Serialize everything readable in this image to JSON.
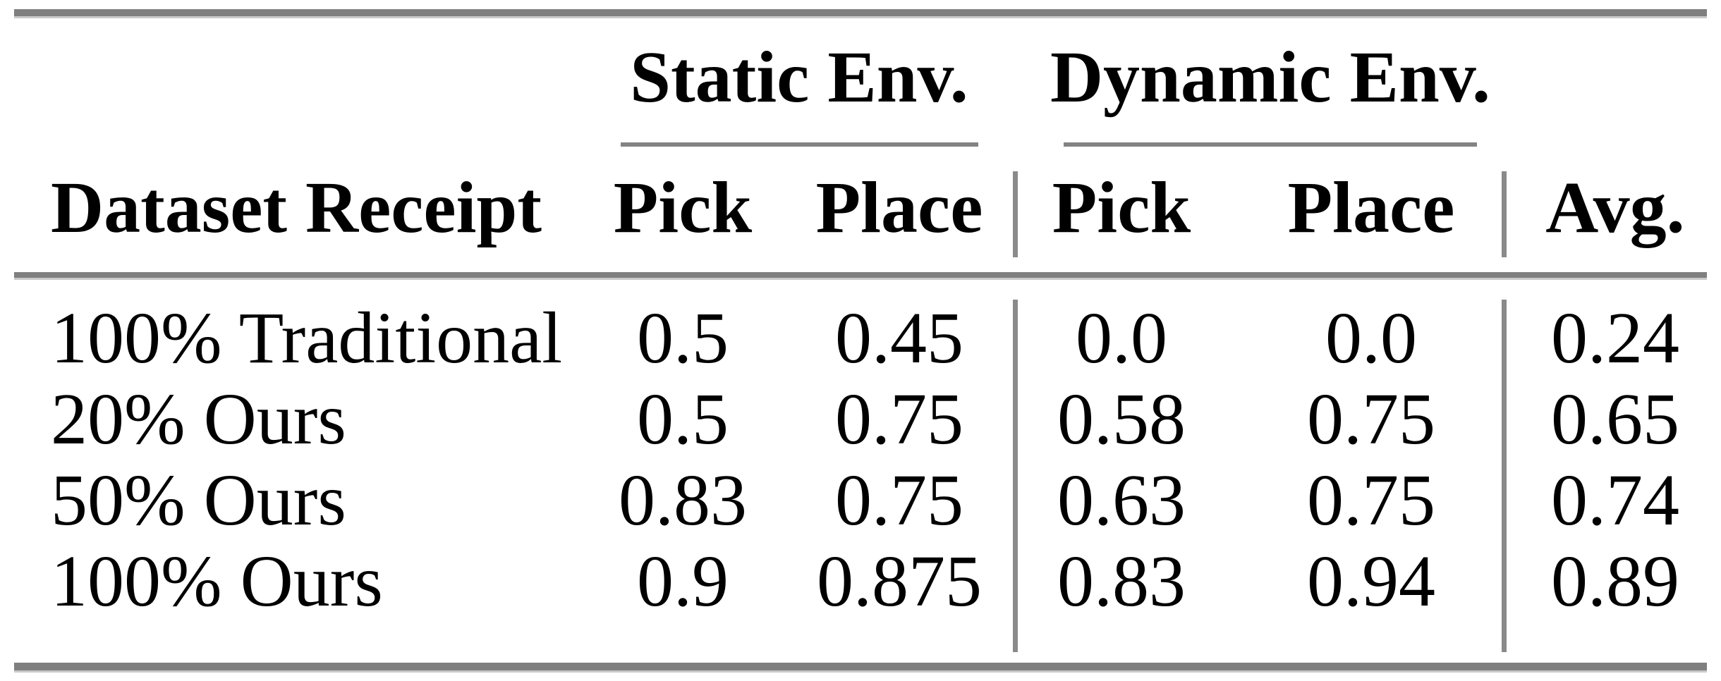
{
  "table": {
    "column_groups": [
      {
        "label": "Static Env."
      },
      {
        "label": "Dynamic Env."
      }
    ],
    "columns": [
      {
        "label": "Dataset Receipt"
      },
      {
        "label": "Pick"
      },
      {
        "label": "Place"
      },
      {
        "label": "Pick"
      },
      {
        "label": "Place"
      },
      {
        "label": "Avg."
      }
    ],
    "rows": [
      {
        "label": "100% Traditional",
        "values": [
          "0.5",
          "0.45",
          "0.0",
          "0.0",
          "0.24"
        ]
      },
      {
        "label": "20% Ours",
        "values": [
          "0.5",
          "0.75",
          "0.58",
          "0.75",
          "0.65"
        ]
      },
      {
        "label": "50% Ours",
        "values": [
          "0.83",
          "0.75",
          "0.63",
          "0.75",
          "0.74"
        ]
      },
      {
        "label": "100% Ours",
        "values": [
          "0.9",
          "0.875",
          "0.83",
          "0.94",
          "0.89"
        ]
      }
    ]
  },
  "chart_data": {
    "type": "table",
    "title": "",
    "column_groups": [
      {
        "label": "Static Env.",
        "columns": [
          "Pick",
          "Place"
        ]
      },
      {
        "label": "Dynamic Env.",
        "columns": [
          "Pick",
          "Place"
        ]
      }
    ],
    "columns": [
      "Dataset Receipt",
      "Static Pick",
      "Static Place",
      "Dynamic Pick",
      "Dynamic Place",
      "Avg."
    ],
    "rows": [
      {
        "dataset_receipt": "100% Traditional",
        "static_pick": 0.5,
        "static_place": 0.45,
        "dynamic_pick": 0.0,
        "dynamic_place": 0.0,
        "avg": 0.24
      },
      {
        "dataset_receipt": "20% Ours",
        "static_pick": 0.5,
        "static_place": 0.75,
        "dynamic_pick": 0.58,
        "dynamic_place": 0.75,
        "avg": 0.65
      },
      {
        "dataset_receipt": "50% Ours",
        "static_pick": 0.83,
        "static_place": 0.75,
        "dynamic_pick": 0.63,
        "dynamic_place": 0.75,
        "avg": 0.74
      },
      {
        "dataset_receipt": "100% Ours",
        "static_pick": 0.9,
        "static_place": 0.875,
        "dynamic_pick": 0.83,
        "dynamic_place": 0.94,
        "avg": 0.89
      }
    ]
  },
  "colors": {
    "background": "#ffffff",
    "text": "#000000",
    "rule_gray": "#7f7f7f",
    "cmidrule_gray": "#838383",
    "vrule_gray": "#8a8a8a"
  }
}
